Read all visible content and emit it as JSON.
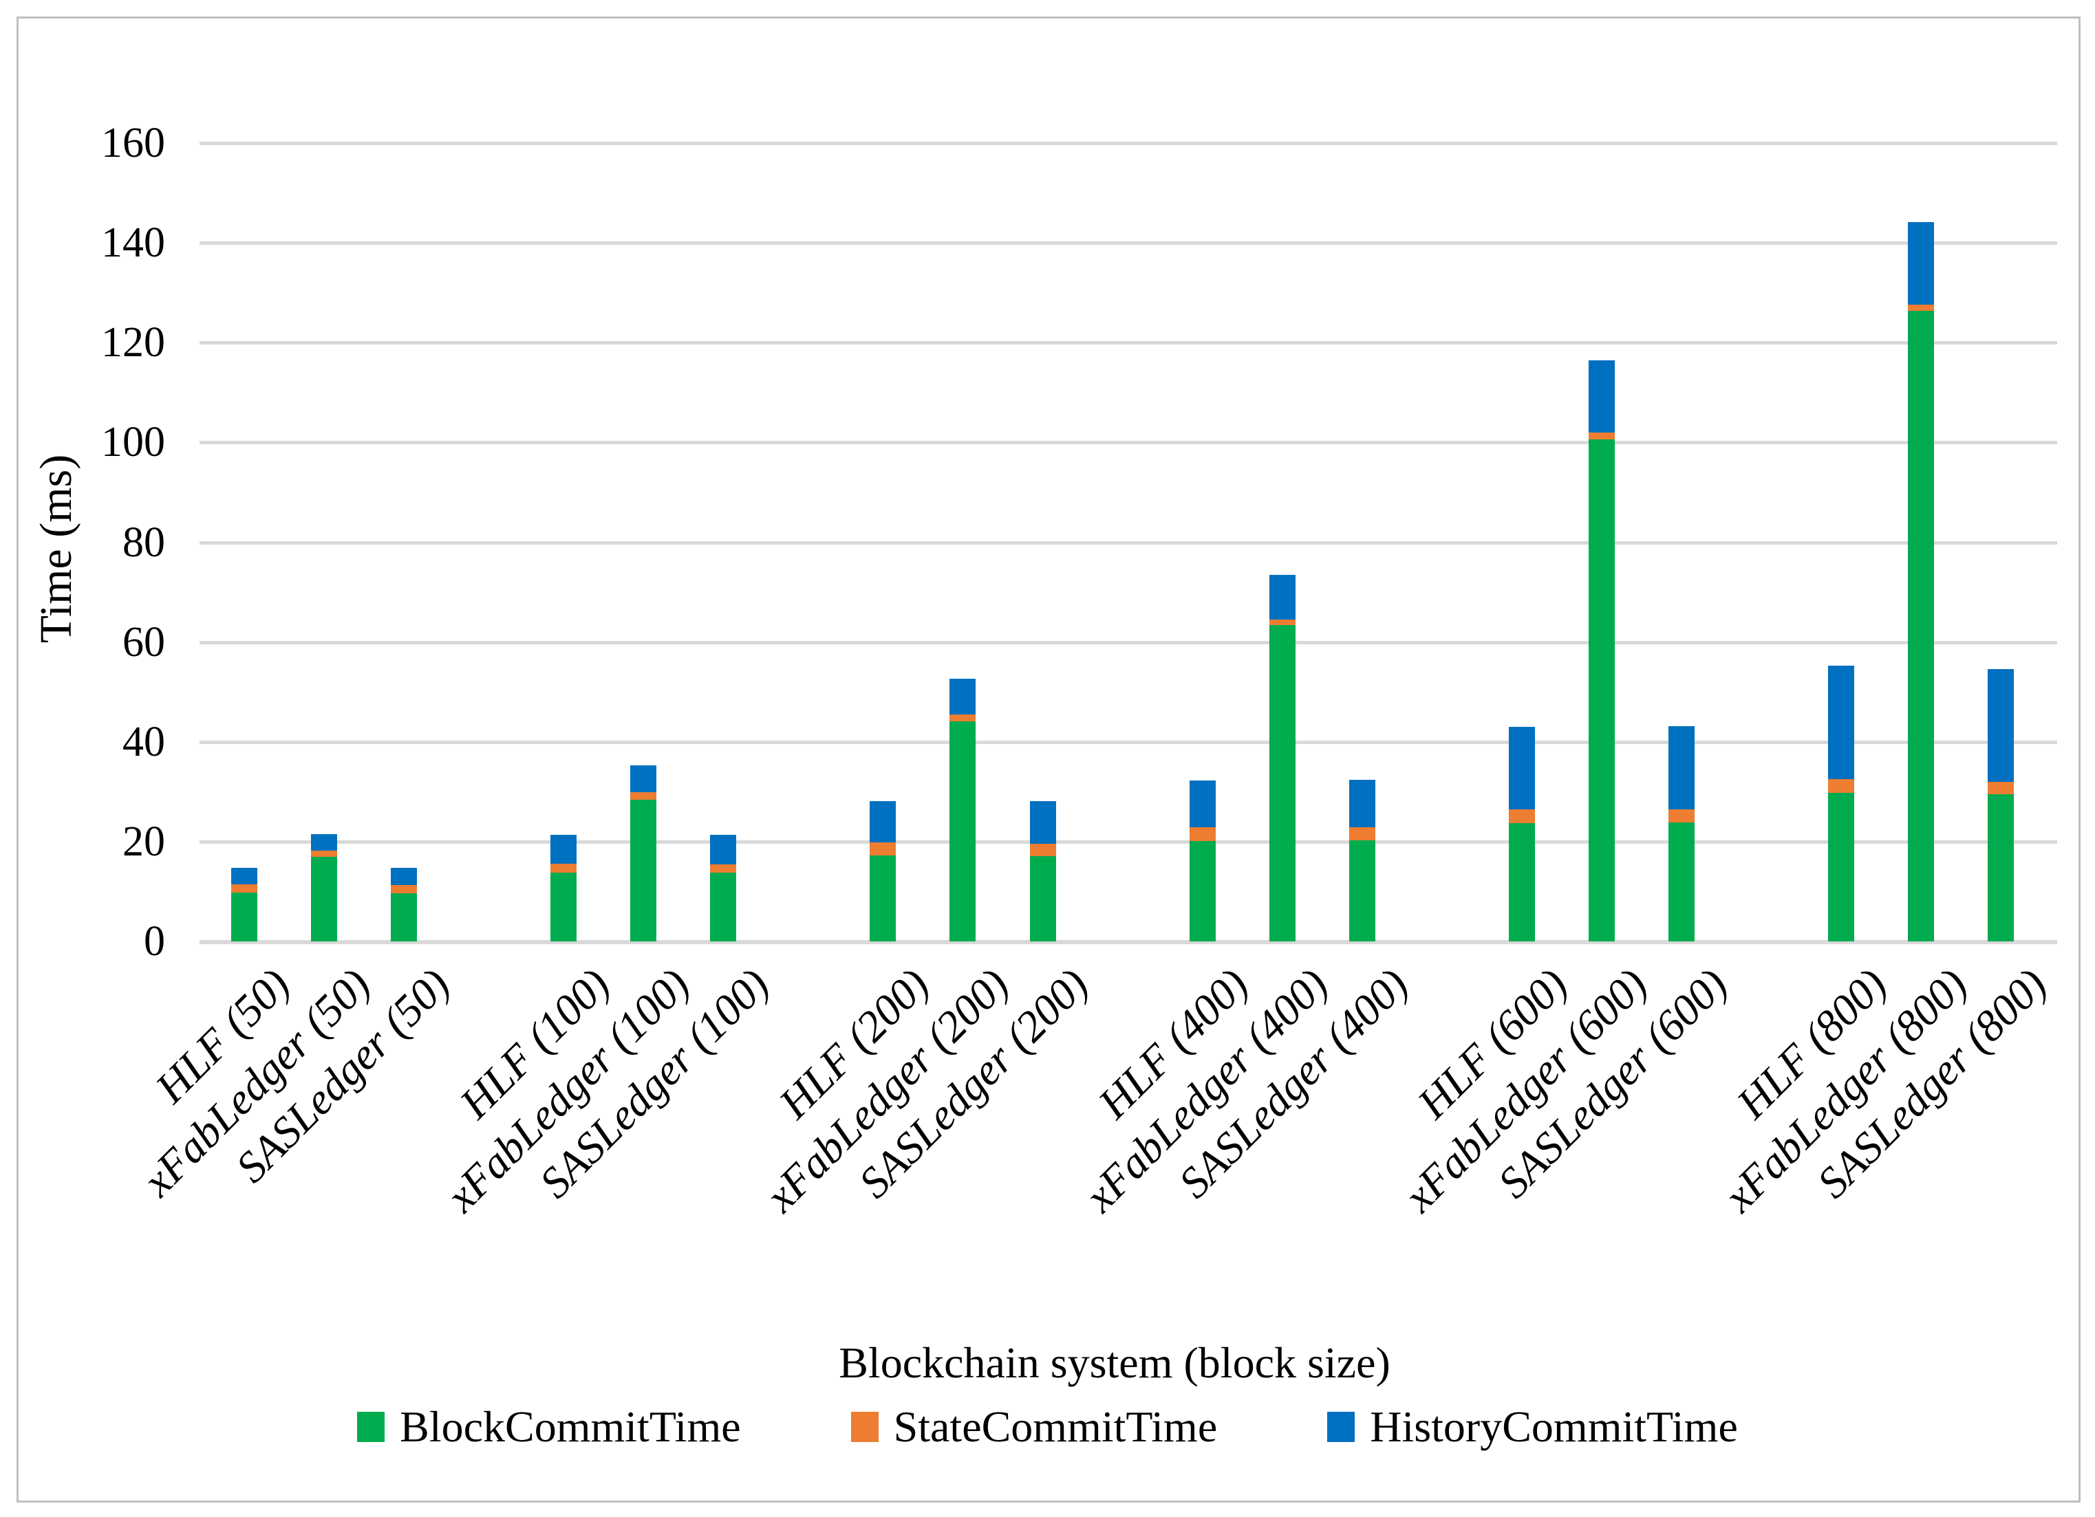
{
  "chart_data": {
    "type": "bar",
    "stacked": true,
    "xlabel": "Blockchain system (block size)",
    "ylabel": "Time (ms)",
    "ylim": [
      0,
      160
    ],
    "ytick_step": 20,
    "grid": true,
    "legend_position": "bottom",
    "categories": [
      "HLF (50)",
      "xFabLedger (50)",
      "SASLedger (50)",
      "HLF (100)",
      "xFabLedger (100)",
      "SASLedger (100)",
      "HLF (200)",
      "xFabLedger (200)",
      "SASLedger (200)",
      "HLF (400)",
      "xFabLedger (400)",
      "SASLedger (400)",
      "HLF (600)",
      "xFabLedger (600)",
      "SASLedger (600)",
      "HLF (800)",
      "xFabLedger (800)",
      "SASLedger (800)"
    ],
    "series": [
      {
        "name": "BlockCommitTime",
        "color": "#00AC4E",
        "values": [
          9.8,
          17.0,
          9.7,
          13.8,
          28.4,
          13.8,
          17.2,
          44.1,
          17.1,
          20.1,
          63.4,
          20.3,
          23.7,
          100.7,
          23.8,
          29.8,
          126.4,
          29.5
        ]
      },
      {
        "name": "StateCommitTime",
        "color": "#ED7D31",
        "values": [
          1.6,
          1.2,
          1.6,
          1.8,
          1.5,
          1.7,
          2.6,
          1.4,
          2.5,
          2.8,
          1.2,
          2.6,
          2.8,
          1.3,
          2.7,
          2.7,
          1.2,
          2.5
        ]
      },
      {
        "name": "HistoryCommitTime",
        "color": "#0070C0",
        "values": [
          3.3,
          3.3,
          3.4,
          5.7,
          5.4,
          5.9,
          8.3,
          7.1,
          8.5,
          9.3,
          8.9,
          9.5,
          16.5,
          14.5,
          16.6,
          22.8,
          16.6,
          22.6
        ]
      }
    ],
    "grid_color": "#D9D9D9"
  }
}
